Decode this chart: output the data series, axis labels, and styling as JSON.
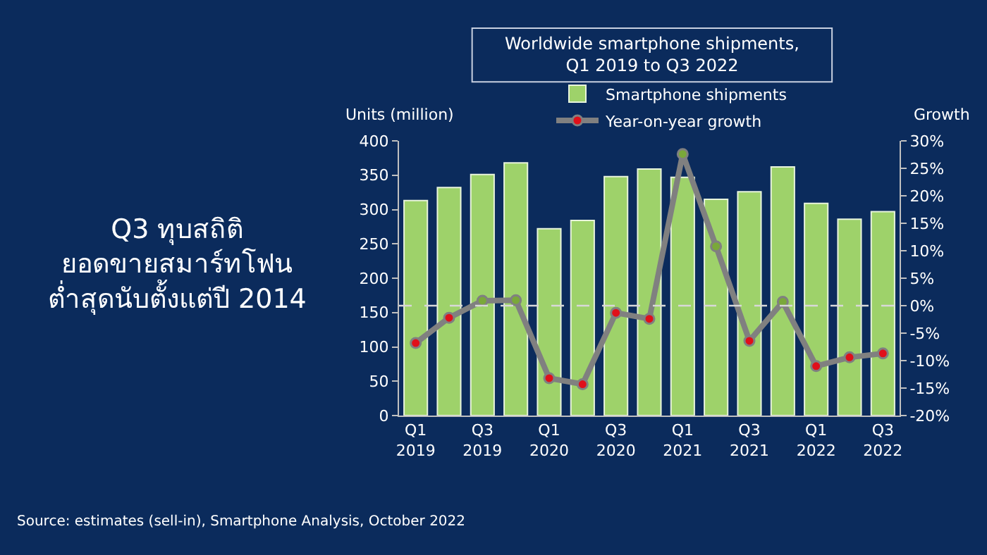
{
  "chart_data": {
    "type": "bar",
    "title": "Worldwide smartphone shipments,\nQ1 2019 to Q3 2022",
    "categories": [
      "Q1\n2019",
      null,
      "Q3\n2019",
      null,
      "Q1\n2020",
      null,
      "Q3\n2020",
      null,
      "Q1\n2021",
      null,
      "Q3\n2021",
      null,
      "Q1\n2022",
      null,
      "Q3\n2022"
    ],
    "series": [
      {
        "name": "Smartphone shipments",
        "color": "#9ed26a",
        "values": [
          313,
          332,
          351,
          368,
          272,
          284,
          348,
          359,
          347,
          315,
          326,
          362,
          309,
          286,
          297
        ]
      },
      {
        "name": "Year-on-year growth",
        "type": "line",
        "axis": "y2",
        "color": "#808080",
        "marker": "circle",
        "colors": [
          "#e0101a",
          "#e0101a",
          "#7aa83a",
          "#7aa83a",
          "#e0101a",
          "#e0101a",
          "#e0101a",
          "#e0101a",
          "#7aa83a",
          "#7aa83a",
          "#e0101a",
          "#7aa83a",
          "#e0101a",
          "#e0101a",
          "#e0101a"
        ],
        "values": [
          -6.8,
          -2.2,
          0.9,
          1.0,
          -13.2,
          -14.3,
          -1.3,
          -2.4,
          27.6,
          10.8,
          -6.4,
          0.7,
          -11.0,
          -9.4,
          -8.7
        ]
      }
    ],
    "ylabel": "Units (million)",
    "y2label": "Growth",
    "ylim": [
      0,
      400
    ],
    "yticks": [
      0,
      50,
      100,
      150,
      200,
      250,
      300,
      350,
      400
    ],
    "y2lim": [
      -20,
      30
    ],
    "y2ticks": [
      {
        "value": -20,
        "label": "-20%"
      },
      {
        "value": -15,
        "label": "-15%"
      },
      {
        "value": -10,
        "label": "-10%"
      },
      {
        "value": -5,
        "label": "-5%"
      },
      {
        "value": 0,
        "label": "0%"
      },
      {
        "value": 5,
        "label": "5%"
      },
      {
        "value": 10,
        "label": "10%"
      },
      {
        "value": 15,
        "label": "15%"
      },
      {
        "value": 20,
        "label": "20%"
      },
      {
        "value": 25,
        "label": "25%"
      },
      {
        "value": 30,
        "label": "30%"
      }
    ],
    "ref_lines": [
      {
        "axis": "y2",
        "value": 0,
        "color": "#d8d8d8",
        "line_style": "dashed"
      }
    ],
    "legend": "top",
    "annotations": [
      "Q3 ทุบสถิติ\nยอดขายสมาร์ทโฟน\nต่ำสุดนับตั้งแต่ปี 2014",
      "Source: estimates (sell-in), Smartphone Analysis, October 2022"
    ]
  }
}
